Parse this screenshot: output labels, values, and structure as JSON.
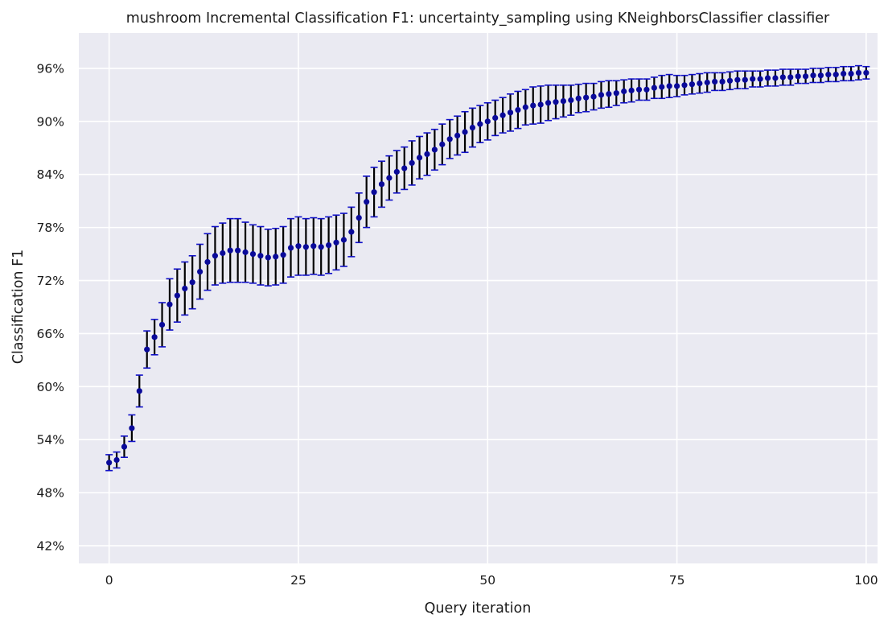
{
  "chart_data": {
    "type": "scatter",
    "title": "mushroom Incremental Classification F1: uncertainty_sampling using KNeighborsClassifier classifier",
    "xlabel": "Query iteration",
    "ylabel": "Classification F1",
    "xlim": [
      -4,
      101.5
    ],
    "ylim": [
      0.4,
      1.0
    ],
    "xticks": [
      0,
      25,
      50,
      75,
      100
    ],
    "xtick_labels": [
      "0",
      "25",
      "50",
      "75",
      "100"
    ],
    "yticks": [
      0.42,
      0.48,
      0.54,
      0.6,
      0.66,
      0.72,
      0.78,
      0.84,
      0.9,
      0.96
    ],
    "ytick_labels": [
      "42%",
      "48%",
      "54%",
      "60%",
      "66%",
      "72%",
      "78%",
      "84%",
      "90%",
      "96%"
    ],
    "grid": true,
    "colors": {
      "background": "#eaeaf2",
      "grid": "#ffffff",
      "marker": "#0a0a9a",
      "errorbar": "#000000",
      "cap": "#1010c8"
    },
    "series": [
      {
        "x": [
          0,
          1,
          2,
          3,
          4,
          5,
          6,
          7,
          8,
          9,
          10,
          11,
          12,
          13,
          14,
          15,
          16,
          17,
          18,
          19,
          20,
          21,
          22,
          23,
          24,
          25,
          26,
          27,
          28,
          29,
          30,
          31,
          32,
          33,
          34,
          35,
          36,
          37,
          38,
          39,
          40,
          41,
          42,
          43,
          44,
          45,
          46,
          47,
          48,
          49,
          50,
          51,
          52,
          53,
          54,
          55,
          56,
          57,
          58,
          59,
          60,
          61,
          62,
          63,
          64,
          65,
          66,
          67,
          68,
          69,
          70,
          71,
          72,
          73,
          74,
          75,
          76,
          77,
          78,
          79,
          80,
          81,
          82,
          83,
          84,
          85,
          86,
          87,
          88,
          89,
          90,
          91,
          92,
          93,
          94,
          95,
          96,
          97,
          98,
          99,
          100
        ],
        "y": [
          0.514,
          0.517,
          0.532,
          0.553,
          0.595,
          0.642,
          0.656,
          0.67,
          0.693,
          0.703,
          0.711,
          0.718,
          0.73,
          0.741,
          0.748,
          0.751,
          0.754,
          0.754,
          0.752,
          0.75,
          0.748,
          0.746,
          0.747,
          0.749,
          0.757,
          0.759,
          0.758,
          0.759,
          0.758,
          0.76,
          0.763,
          0.766,
          0.775,
          0.791,
          0.809,
          0.82,
          0.829,
          0.836,
          0.843,
          0.847,
          0.853,
          0.859,
          0.863,
          0.868,
          0.874,
          0.88,
          0.884,
          0.888,
          0.893,
          0.897,
          0.9,
          0.904,
          0.907,
          0.91,
          0.913,
          0.916,
          0.918,
          0.919,
          0.921,
          0.922,
          0.923,
          0.924,
          0.926,
          0.927,
          0.928,
          0.93,
          0.931,
          0.932,
          0.934,
          0.935,
          0.936,
          0.936,
          0.938,
          0.939,
          0.94,
          0.94,
          0.941,
          0.942,
          0.943,
          0.944,
          0.945,
          0.945,
          0.946,
          0.947,
          0.947,
          0.948,
          0.948,
          0.949,
          0.949,
          0.95,
          0.95,
          0.951,
          0.951,
          0.952,
          0.952,
          0.953,
          0.953,
          0.954,
          0.954,
          0.955,
          0.955
        ],
        "err": [
          0.009,
          0.009,
          0.012,
          0.015,
          0.018,
          0.021,
          0.02,
          0.025,
          0.029,
          0.03,
          0.03,
          0.03,
          0.031,
          0.032,
          0.033,
          0.034,
          0.036,
          0.036,
          0.034,
          0.033,
          0.033,
          0.032,
          0.032,
          0.032,
          0.033,
          0.033,
          0.032,
          0.032,
          0.032,
          0.032,
          0.031,
          0.03,
          0.028,
          0.028,
          0.029,
          0.028,
          0.026,
          0.025,
          0.024,
          0.024,
          0.025,
          0.024,
          0.024,
          0.023,
          0.023,
          0.022,
          0.022,
          0.023,
          0.022,
          0.021,
          0.021,
          0.02,
          0.02,
          0.021,
          0.021,
          0.02,
          0.021,
          0.021,
          0.02,
          0.019,
          0.018,
          0.017,
          0.016,
          0.016,
          0.015,
          0.015,
          0.015,
          0.014,
          0.013,
          0.013,
          0.012,
          0.012,
          0.012,
          0.013,
          0.013,
          0.012,
          0.011,
          0.011,
          0.011,
          0.011,
          0.01,
          0.01,
          0.01,
          0.01,
          0.01,
          0.009,
          0.009,
          0.009,
          0.009,
          0.009,
          0.009,
          0.008,
          0.008,
          0.008,
          0.008,
          0.008,
          0.008,
          0.008,
          0.008,
          0.008,
          0.007
        ]
      }
    ]
  }
}
